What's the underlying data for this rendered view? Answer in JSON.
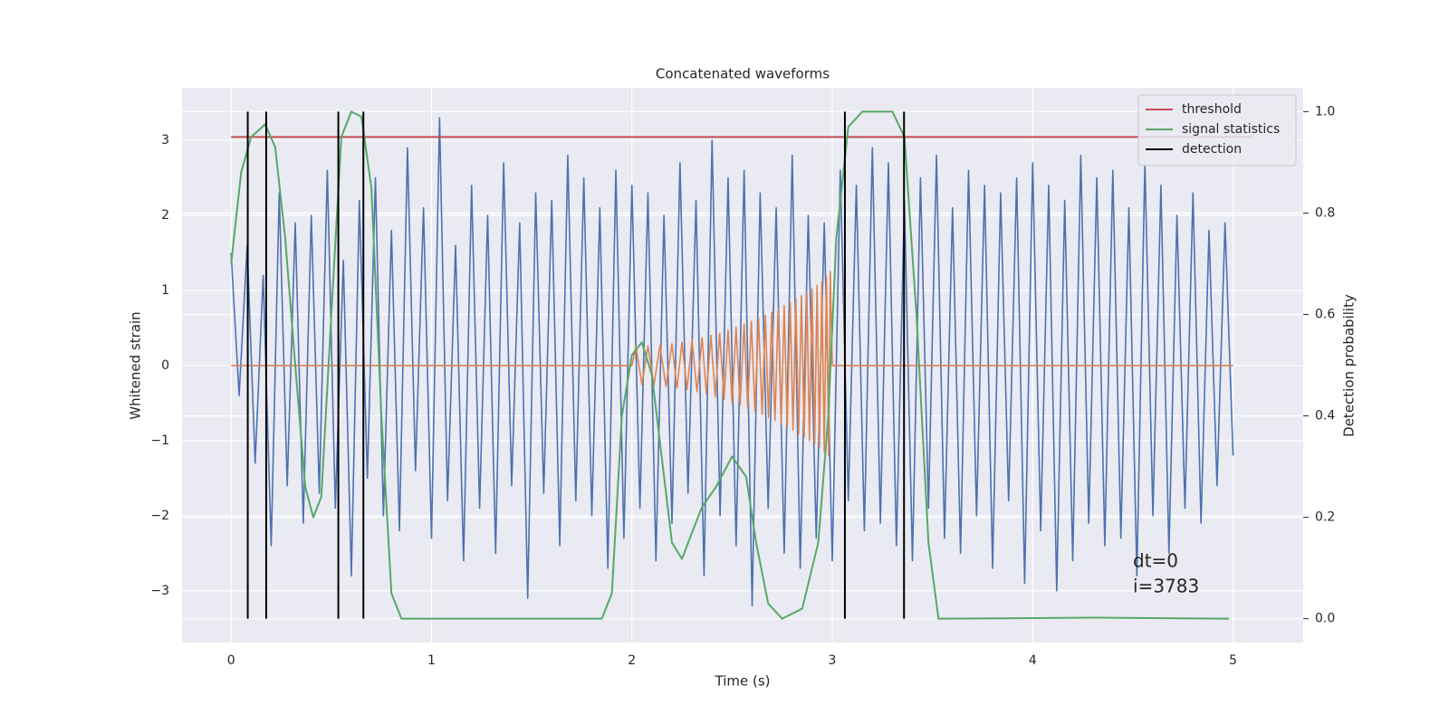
{
  "chart_data": {
    "type": "line",
    "title": "Concatenated waveforms",
    "xlabel": "Time (s)",
    "ylabel": "Whitened strain",
    "y2label": "Detection probability",
    "xlim": [
      -0.245,
      5.35
    ],
    "ylim": [
      -3.69,
      3.7
    ],
    "y2lim": [
      -0.047,
      1.047
    ],
    "xticks": [
      0,
      1,
      2,
      3,
      4,
      5
    ],
    "yticks": [
      {
        "value": -3,
        "label": "−3"
      },
      {
        "value": -2,
        "label": "−2"
      },
      {
        "value": -1,
        "label": "−1"
      },
      0,
      1,
      2,
      3
    ],
    "y2ticks": [
      {
        "value": 0,
        "label": "0.0"
      },
      0.2,
      0.4,
      0.6,
      0.8,
      {
        "value": 1,
        "label": "1.0"
      }
    ],
    "grid": true,
    "legend": "upper right",
    "annotations": [
      "dt=0",
      "i=3783"
    ],
    "series": [
      {
        "color": "#4c72b0",
        "axis": "y",
        "x": [
          0,
          0.04,
          0.08,
          0.12,
          0.16,
          0.2,
          0.24,
          0.28,
          0.32,
          0.36,
          0.4,
          0.44,
          0.48,
          0.52,
          0.56,
          0.6,
          0.64,
          0.68,
          0.72,
          0.76,
          0.8,
          0.84,
          0.88,
          0.92,
          0.96,
          1,
          1.04,
          1.08,
          1.12,
          1.16,
          1.2,
          1.24,
          1.28,
          1.32,
          1.36,
          1.4,
          1.44,
          1.48,
          1.52,
          1.56,
          1.6,
          1.64,
          1.68,
          1.72,
          1.76,
          1.8,
          1.84,
          1.88,
          1.92,
          1.96,
          2,
          2.04,
          2.08,
          2.12,
          2.16,
          2.2,
          2.24,
          2.28,
          2.32,
          2.36,
          2.4,
          2.44,
          2.48,
          2.52,
          2.56,
          2.6,
          2.64,
          2.68,
          2.72,
          2.76,
          2.8,
          2.84,
          2.88,
          2.92,
          2.96,
          3,
          3.04,
          3.08,
          3.12,
          3.16,
          3.2,
          3.24,
          3.28,
          3.32,
          3.36,
          3.4,
          3.44,
          3.48,
          3.52,
          3.56,
          3.6,
          3.64,
          3.68,
          3.72,
          3.76,
          3.8,
          3.84,
          3.88,
          3.92,
          3.96,
          4,
          4.04,
          4.08,
          4.12,
          4.16,
          4.2,
          4.24,
          4.28,
          4.32,
          4.36,
          4.4,
          4.44,
          4.48,
          4.52,
          4.56,
          4.6,
          4.64,
          4.68,
          4.72,
          4.76,
          4.8,
          4.84,
          4.88,
          4.92,
          4.96,
          5
        ],
        "values": [
          1.5,
          -0.4,
          1.6,
          -1.3,
          1.2,
          -2.4,
          2.3,
          -1.6,
          1.9,
          -2.1,
          2.0,
          -1.7,
          2.6,
          -1.9,
          1.4,
          -2.8,
          2.2,
          -1.5,
          2.5,
          -2.0,
          1.8,
          -2.2,
          2.9,
          -1.4,
          2.1,
          -2.3,
          3.3,
          -1.8,
          1.6,
          -2.6,
          2.4,
          -1.9,
          2.0,
          -2.5,
          2.7,
          -1.6,
          1.9,
          -3.1,
          2.3,
          -1.7,
          2.2,
          -2.4,
          2.8,
          -1.8,
          2.5,
          -2.0,
          2.1,
          -2.7,
          2.6,
          -2.3,
          2.4,
          -1.9,
          2.3,
          -2.6,
          2.0,
          -2.1,
          2.7,
          -1.7,
          2.2,
          -2.8,
          3.0,
          -2.0,
          2.5,
          -2.4,
          2.6,
          -3.2,
          2.3,
          -1.9,
          2.1,
          -2.5,
          2.8,
          -2.7,
          2.0,
          -2.3,
          1.9,
          -2.6,
          2.6,
          -1.8,
          2.4,
          -2.2,
          2.9,
          -2.1,
          2.7,
          -2.4,
          2.2,
          -2.6,
          2.5,
          -1.9,
          2.8,
          -2.3,
          2.1,
          -2.5,
          2.6,
          -2.0,
          2.4,
          -2.7,
          2.3,
          -1.8,
          2.5,
          -2.9,
          2.7,
          -2.2,
          2.4,
          -3.0,
          2.2,
          -2.6,
          2.8,
          -2.1,
          2.5,
          -2.4,
          2.6,
          -2.3,
          2.1,
          -2.8,
          2.7,
          -2.0,
          2.4,
          -2.5,
          2.0,
          -1.9,
          2.3,
          -2.1,
          1.8,
          -1.6,
          1.9,
          -1.2
        ]
      },
      {
        "color": "#dd8452",
        "axis": "y",
        "x": [
          0,
          2,
          2.02,
          2.05,
          2.08,
          2.11,
          2.14,
          2.17,
          2.2,
          2.225,
          2.25,
          2.275,
          2.3,
          2.325,
          2.35,
          2.372,
          2.394,
          2.416,
          2.438,
          2.46,
          2.48,
          2.5,
          2.52,
          2.54,
          2.56,
          2.578,
          2.596,
          2.614,
          2.632,
          2.65,
          2.666,
          2.682,
          2.698,
          2.714,
          2.73,
          2.745,
          2.76,
          2.775,
          2.79,
          2.804,
          2.818,
          2.832,
          2.846,
          2.86,
          2.873,
          2.886,
          2.899,
          2.912,
          2.924,
          2.936,
          2.948,
          2.96,
          2.971,
          2.982,
          2.99,
          3,
          5
        ],
        "values": [
          0,
          0,
          0.25,
          -0.25,
          0.26,
          -0.26,
          0.27,
          -0.28,
          0.29,
          -0.3,
          0.31,
          -0.32,
          0.34,
          -0.35,
          0.37,
          -0.38,
          0.4,
          -0.41,
          0.43,
          -0.45,
          0.47,
          -0.49,
          0.51,
          -0.53,
          0.55,
          -0.57,
          0.59,
          -0.61,
          0.63,
          -0.65,
          0.67,
          -0.69,
          0.71,
          -0.73,
          0.76,
          -0.78,
          0.8,
          -0.82,
          0.84,
          -0.86,
          0.89,
          -0.91,
          0.93,
          -0.95,
          0.98,
          -1.0,
          1.02,
          -1.04,
          1.07,
          -1.09,
          1.11,
          -1.14,
          1.17,
          -1.2,
          1.25,
          0,
          0
        ]
      },
      {
        "name": "threshold",
        "color": "#c44e52",
        "axis": "y2",
        "x": [
          0,
          5.1
        ],
        "values": [
          0.95,
          0.95
        ]
      },
      {
        "name": "signal statistics",
        "color": "#55a868",
        "axis": "y2",
        "x": [
          0,
          0.05,
          0.1,
          0.17,
          0.22,
          0.27,
          0.32,
          0.37,
          0.41,
          0.45,
          0.5,
          0.55,
          0.6,
          0.65,
          0.7,
          0.75,
          0.8,
          0.85,
          1,
          1.85,
          1.9,
          1.95,
          2,
          2.05,
          2.1,
          2.2,
          2.25,
          2.3,
          2.35,
          2.42,
          2.5,
          2.57,
          2.62,
          2.68,
          2.75,
          2.85,
          2.93,
          2.98,
          3.02,
          3.08,
          3.15,
          3.3,
          3.36,
          3.42,
          3.48,
          3.53,
          4.3,
          4.98
        ],
        "values": [
          0.7,
          0.88,
          0.95,
          0.975,
          0.93,
          0.75,
          0.5,
          0.26,
          0.2,
          0.24,
          0.6,
          0.95,
          1,
          0.99,
          0.85,
          0.4,
          0.05,
          0,
          0,
          0,
          0.05,
          0.4,
          0.52,
          0.545,
          0.48,
          0.15,
          0.118,
          0.17,
          0.22,
          0.26,
          0.32,
          0.28,
          0.15,
          0.03,
          0,
          0.02,
          0.15,
          0.4,
          0.75,
          0.97,
          1,
          1,
          0.95,
          0.6,
          0.15,
          0,
          0.002,
          0
        ]
      },
      {
        "name": "detection",
        "color": "#000000",
        "axis": "y2",
        "x": [
          0.083,
          0.175,
          0.535,
          0.66,
          3.063,
          3.358
        ],
        "span": [
          0,
          1
        ]
      }
    ]
  }
}
